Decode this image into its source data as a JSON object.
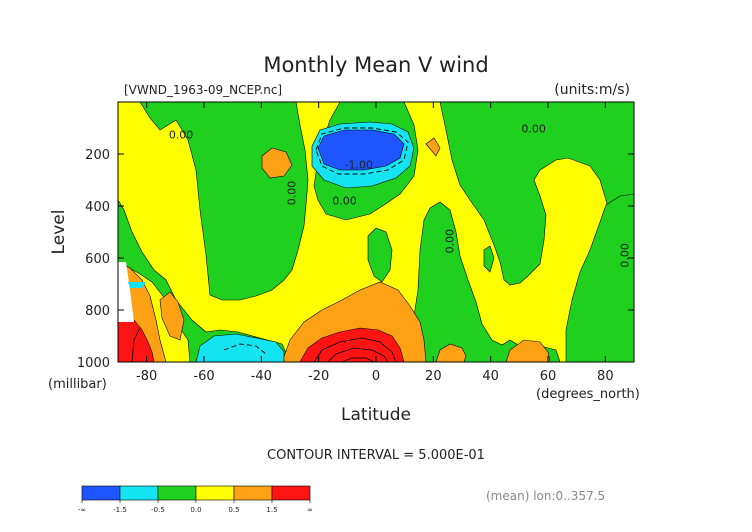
{
  "chart_data": {
    "type": "heatmap",
    "title": "Monthly Mean V wind",
    "file_label": "[VWND_1963-09_NCEP.nc]",
    "units_label": "(units:m/s)",
    "ylabel": "Level",
    "yunit": "(millibar)",
    "xlabel": "Latitude",
    "xunit": "(degrees_north)",
    "xlim": [
      -90,
      90
    ],
    "ylim": [
      0,
      1000
    ],
    "y_reversed": true,
    "x_ticks": [
      -80,
      -60,
      -40,
      -20,
      0,
      20,
      40,
      60,
      80
    ],
    "y_ticks": [
      200,
      400,
      600,
      800,
      1000
    ],
    "contour_interval_text": "CONTOUR INTERVAL = 5.000E-01",
    "footer_text": "(mean) lon:0..357.5",
    "contour_labels": [
      {
        "text": "0.00",
        "lat": -68,
        "lev": 140
      },
      {
        "text": "0.00",
        "lat": -28,
        "lev": 350,
        "rotate": -90
      },
      {
        "text": "0.00",
        "lat": -11,
        "lev": 395
      },
      {
        "text": "-1.00",
        "lat": -6,
        "lev": 255
      },
      {
        "text": "0.00",
        "lat": 27,
        "lev": 535,
        "rotate": -90
      },
      {
        "text": "0.00",
        "lat": 55,
        "lev": 118
      },
      {
        "text": "0.00",
        "lat": 88,
        "lev": 590,
        "rotate": -90
      }
    ],
    "colorbar": {
      "colors": [
        "#1e55ff",
        "#14e3f2",
        "#1fd01f",
        "#ffff00",
        "#ffa114",
        "#ff1414"
      ],
      "labels": [
        "-∞",
        "-1.5",
        "-0.5",
        "0.0",
        "0.5",
        "1.5",
        "∞"
      ]
    },
    "legend_bins": [
      {
        "range": "< -1.5",
        "color": "#1e55ff"
      },
      {
        "range": "-1.5 to -0.5",
        "color": "#14e3f2"
      },
      {
        "range": "-0.5 to 0.0",
        "color": "#1fd01f"
      },
      {
        "range": "0.0 to 0.5",
        "color": "#ffff00"
      },
      {
        "range": "0.5 to 1.5",
        "color": "#ffa114"
      },
      {
        "range": "> 1.5",
        "color": "#ff1414"
      }
    ]
  }
}
